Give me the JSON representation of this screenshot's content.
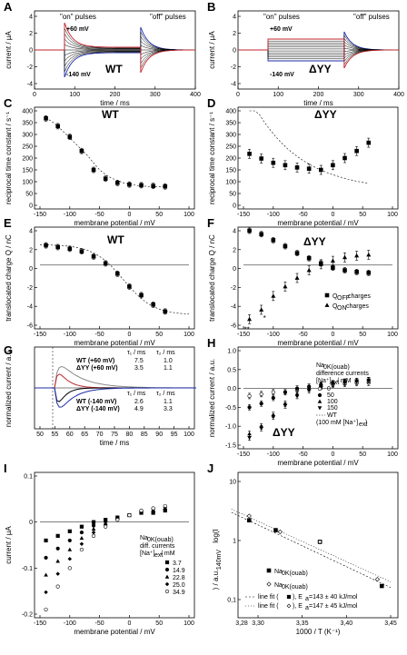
{
  "figure": {
    "A": {
      "letter": "A",
      "title_on": "\"on\" pulses",
      "title_off": "\"off\" pulses",
      "pos": "+60 mV",
      "neg": "-140 mV",
      "name": "WT",
      "xlabel": "time / ms",
      "ylabel": "current / µA",
      "xticks": [
        "0",
        "100",
        "200",
        "300",
        "400"
      ],
      "yticks": [
        "4",
        "2",
        "0",
        "-2",
        "-4"
      ]
    },
    "B": {
      "letter": "B",
      "title_on": "\"on\" pulses",
      "title_off": "\"off\" pulses",
      "pos": "+60 mV",
      "neg": "-140 mV",
      "name": "ΔYY",
      "xlabel": "time / ms",
      "ylabel": "current / µA",
      "xticks": [
        "0",
        "100",
        "200",
        "300",
        "400"
      ],
      "yticks": [
        "4",
        "2",
        "0",
        "-2",
        "-4"
      ]
    },
    "C": {
      "letter": "C",
      "name": "WT",
      "xlabel": "membrane potential / mV",
      "ylabel": "reciprocal time constant / s⁻¹",
      "xticks": [
        "-150",
        "-100",
        "-50",
        "0",
        "50",
        "100"
      ],
      "yticks": [
        "400",
        "350",
        "300",
        "250",
        "200",
        "150",
        "100",
        "50",
        "0"
      ]
    },
    "D": {
      "letter": "D",
      "name": "ΔYY",
      "xlabel": "membrane potential / mV",
      "ylabel": "reciprocal time constant / s⁻¹",
      "xticks": [
        "-150",
        "-100",
        "-50",
        "0",
        "50",
        "100"
      ],
      "yticks": [
        "400",
        "350",
        "300",
        "250",
        "200",
        "150",
        "100",
        "50",
        "0"
      ]
    },
    "E": {
      "letter": "E",
      "name": "WT",
      "xlabel": "membrane potential / mV",
      "ylabel": "translocated charge Q / nC",
      "xticks": [
        "-150",
        "-100",
        "-50",
        "0",
        "50",
        "100"
      ],
      "yticks": [
        "4",
        "2",
        "0",
        "-2",
        "-4",
        "-6"
      ]
    },
    "F": {
      "letter": "F",
      "name": "ΔYY",
      "xlabel": "membrane potential / mV",
      "ylabel": "translocated charge Q / nC",
      "xticks": [
        "-150",
        "-100",
        "-50",
        "0",
        "50",
        "100"
      ],
      "yticks": [
        "4",
        "2",
        "0",
        "-2",
        "-4",
        "-6"
      ],
      "legend1": "Q",
      "legend1sub": "OFF",
      "legend1suf": " charges",
      "legend2": "Q",
      "legend2sub": "ON",
      "legend2suf": " charges",
      "star1": "**",
      "star2": "*"
    },
    "G": {
      "letter": "G",
      "xlabel": "time / ms",
      "ylabel": "normalized current / a.u.",
      "xticks": [
        "50",
        "55",
        "60",
        "65",
        "70",
        "75",
        "80",
        "85",
        "90",
        "95",
        "100"
      ],
      "hdr1": "τ₁ / ms",
      "hdr2": "τ₂ / ms",
      "rows": [
        {
          "label": "WT (+60 mV)",
          "t1": "7.5",
          "t2": "1.0"
        },
        {
          "label": "ΔYY (+60 mV)",
          "t1": "3.5",
          "t2": "1.1"
        },
        {
          "label": "WT (-140 mV)",
          "t1": "2.6",
          "t2": "1.1"
        },
        {
          "label": "ΔYY (-140 mV)",
          "t1": "4.9",
          "t2": "3.3"
        }
      ]
    },
    "H": {
      "letter": "H",
      "name": "ΔYY",
      "xlabel": "membrane potential / mV",
      "ylabel": "normalized current / a.u.",
      "xticks": [
        "-150",
        "-100",
        "-50",
        "0",
        "50",
        "100"
      ],
      "yticks": [
        "1.0",
        "0.5",
        "0.0",
        "-0.5",
        "-1.0",
        "-1.5"
      ],
      "leg_title": "Na",
      "leg_sub": "0K(ouab)",
      "leg_l2": "difference currents",
      "leg_l3": "[Na⁺]",
      "leg_l3sub": "ext",
      "leg_l3suf": " / mM",
      "entries": [
        "0",
        "50",
        "100",
        "150"
      ],
      "wt1": "WT",
      "wt2": "(100 mM [Na⁺]",
      "wt2sub": "ext",
      "wt2suf": ")"
    },
    "I": {
      "letter": "I",
      "xlabel": "membrane potential / mV",
      "ylabel": "current / µA",
      "xticks": [
        "-150",
        "-100",
        "-50",
        "0",
        "50",
        "100"
      ],
      "yticks": [
        "0.1",
        "0",
        "-0.1",
        "-0.2"
      ],
      "leg_title": "Na",
      "leg_sub": "0K(ouab)",
      "leg_l2": "diff. currents",
      "leg_l3": "[Na⁺]",
      "leg_l3sub": "ext",
      "leg_l3suf": " / mM",
      "entries": [
        "3.7",
        "14.9",
        "22.8",
        "25.0",
        "34.9"
      ]
    },
    "J": {
      "letter": "J",
      "xlabel": "1000 / T (K⁻¹)",
      "ylabel": "log(I",
      "ylabel_sub": "140mV",
      "ylabel_suf": ") / a.u.",
      "xticks": [
        "3,30",
        "3,35",
        "3,40",
        "3,45"
      ],
      "yticks": [
        "10",
        "1",
        "0,1"
      ],
      "x2tick": "3,28",
      "l1": "Na",
      "l1sub": "0K(ouab)",
      "l2": "Na",
      "l2sub": "0K(ouab)",
      "fit1": "line fit (",
      "fit1b": "), E",
      "fit1sub": "a",
      "fit1c": "=143 ± 40 kJ/mol",
      "fit2": "line fit (",
      "fit2b": "), E",
      "fit2sub": "a",
      "fit2c": "=147 ± 45 kJ/mol"
    }
  },
  "colors": {
    "red": "#c0262d",
    "blue": "#1f2ea8",
    "black": "#000000",
    "grey": "#888888"
  },
  "chart_data": [
    {
      "type": "line",
      "panel": "C",
      "x": [
        -140,
        -130,
        -120,
        -110,
        -100,
        -90,
        -80,
        -70,
        -60,
        -50,
        -40,
        -30,
        -20,
        -10,
        0,
        10,
        20,
        30,
        40,
        50,
        60
      ],
      "values": [
        370,
        355,
        335,
        310,
        285,
        260,
        235,
        210,
        180,
        150,
        130,
        115,
        105,
        95,
        90,
        85,
        82,
        80,
        78,
        78,
        78
      ],
      "xlim": [
        -150,
        100
      ],
      "ylim": [
        0,
        400
      ]
    },
    {
      "type": "scatter",
      "panel": "C",
      "x": [
        -140,
        -120,
        -100,
        -80,
        -60,
        -40,
        -20,
        0,
        20,
        40,
        60
      ],
      "values": [
        368,
        335,
        290,
        230,
        150,
        113,
        95,
        88,
        85,
        82,
        80
      ],
      "ylim": [
        0,
        400
      ]
    },
    {
      "type": "scatter",
      "panel": "D",
      "x": [
        -140,
        -120,
        -100,
        -80,
        -60,
        -40,
        -20,
        0,
        20,
        40,
        60
      ],
      "values": [
        218,
        198,
        180,
        170,
        160,
        155,
        150,
        170,
        200,
        230,
        265
      ],
      "ylim": [
        0,
        400
      ]
    },
    {
      "type": "scatter",
      "panel": "E",
      "x": [
        -140,
        -120,
        -100,
        -80,
        -60,
        -40,
        -20,
        0,
        20,
        40,
        60
      ],
      "values": [
        2.3,
        2.1,
        1.9,
        1.6,
        1.0,
        0.2,
        -1.0,
        -2.5,
        -3.5,
        -4.6,
        -5.4
      ],
      "ylim": [
        -7,
        4
      ]
    },
    {
      "type": "scatter",
      "panel": "F",
      "series": [
        {
          "name": "Q OFF charges",
          "x": [
            -140,
            -120,
            -100,
            -80,
            -60,
            -40,
            -20,
            0,
            20,
            40,
            60
          ],
          "values": [
            4,
            3.6,
            2.9,
            2.2,
            1.4,
            0.8,
            0.2,
            -0.3,
            -0.6,
            -0.8,
            -0.9
          ]
        },
        {
          "name": "Q ON charges",
          "x": [
            -140,
            -120,
            -100,
            -80,
            -60,
            -40,
            -20,
            0,
            20,
            40,
            60
          ],
          "values": [
            -6.3,
            -5.2,
            -3.6,
            -2.5,
            -1.5,
            -0.6,
            0.1,
            0.5,
            0.9,
            1.1,
            1.2
          ]
        }
      ],
      "ylim": [
        -7,
        4
      ]
    },
    {
      "type": "scatter",
      "panel": "H",
      "series": [
        {
          "name": "0",
          "x": [
            -140,
            -120,
            -100,
            -80,
            -60,
            -40,
            -20,
            0,
            20,
            40,
            60
          ],
          "values": [
            -0.2,
            -0.15,
            -0.1,
            -0.1,
            -0.05,
            0,
            0.05,
            0.1,
            0.12,
            0.14,
            0.15
          ]
        },
        {
          "name": "50",
          "x": [
            -140,
            -120,
            -100,
            -80,
            -60,
            -40,
            -20,
            0,
            20,
            40,
            60
          ],
          "values": [
            -0.5,
            -0.4,
            -0.25,
            -0.1,
            0,
            0.05,
            0.1,
            0.14,
            0.18,
            0.2,
            0.22
          ]
        },
        {
          "name": "100",
          "x": [
            -140,
            -120,
            -100,
            -80,
            -60,
            -40,
            -20,
            0,
            20,
            40,
            60
          ],
          "values": [
            -1.2,
            -1.0,
            -0.7,
            -0.4,
            -0.15,
            0,
            0.08,
            0.14,
            0.18,
            0.2,
            0.22
          ]
        },
        {
          "name": "150",
          "x": [
            -140,
            -120,
            -100,
            -80,
            -60,
            -40,
            -20,
            0,
            20,
            40,
            60
          ],
          "values": [
            -1.3,
            -1.05,
            -0.75,
            -0.45,
            -0.2,
            -0.05,
            0.05,
            0.12,
            0.17,
            0.2,
            0.22
          ]
        }
      ],
      "ylim": [
        -1.5,
        1.0
      ]
    },
    {
      "type": "scatter",
      "panel": "I",
      "series": [
        {
          "name": "3.7",
          "x": [
            -140,
            -120,
            -100,
            -80,
            -60,
            -40,
            -20,
            0,
            20,
            40,
            60
          ],
          "values": [
            -0.04,
            -0.03,
            -0.02,
            -0.01,
            0,
            0.005,
            0.01,
            0.015,
            0.02,
            0.02,
            0.025
          ]
        },
        {
          "name": "34.9",
          "x": [
            -140,
            -120,
            -100,
            -80,
            -60,
            -40,
            -20,
            0,
            20,
            40,
            60
          ],
          "values": [
            -0.19,
            -0.14,
            -0.1,
            -0.06,
            -0.03,
            -0.01,
            0.005,
            0.015,
            0.025,
            0.03,
            0.035
          ]
        }
      ],
      "ylim": [
        -0.2,
        0.1
      ]
    },
    {
      "type": "scatter",
      "panel": "J",
      "series": [
        {
          "name": "Na 0K(ouab) filled",
          "x": [
            3.29,
            3.32,
            3.37,
            3.44
          ],
          "values": [
            2.2,
            1.5,
            0.95,
            0.17
          ]
        },
        {
          "name": "Na 0K(ouab) open",
          "x": [
            3.29,
            3.325,
            3.37,
            3.435
          ],
          "values": [
            2.6,
            1.4,
            0.95,
            0.22
          ]
        }
      ],
      "ylim": [
        0.1,
        10
      ]
    }
  ]
}
